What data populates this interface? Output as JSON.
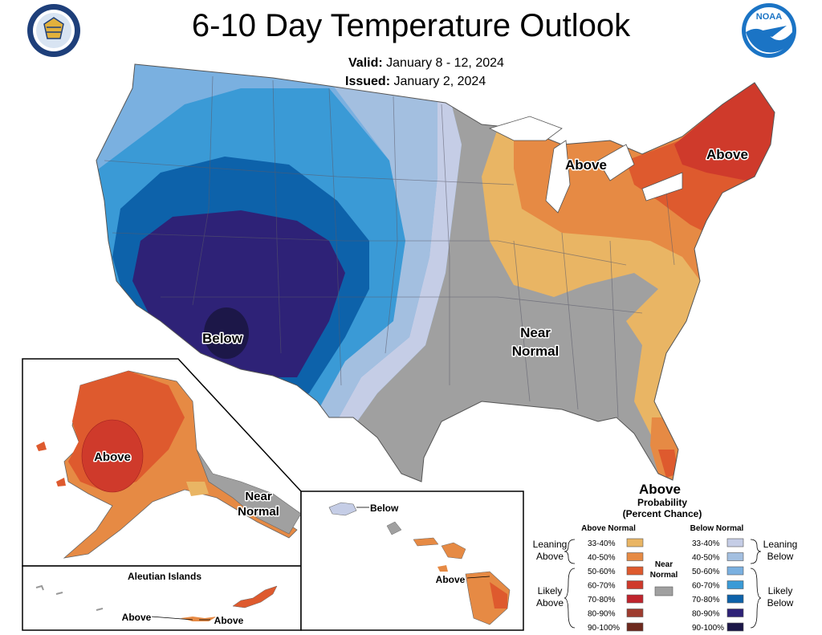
{
  "title": "6-10 Day Temperature Outlook",
  "valid_label": "Valid:",
  "valid_value": "January 8 - 12, 2024",
  "issued_label": "Issued:",
  "issued_value": "January 2, 2024",
  "logos": {
    "left": "department-of-commerce-seal",
    "right": "noaa-logo",
    "noaa_text": "NOAA"
  },
  "map_labels": {
    "conus_below": "Below",
    "great_lakes_above": "Above",
    "northeast_above": "Above",
    "near_normal_1": "Near",
    "near_normal_2": "Normal",
    "florida_above": "Above",
    "alaska_above": "Above",
    "alaska_near_1": "Near",
    "alaska_near_2": "Normal",
    "aleutian_title": "Aleutian Islands",
    "aleutian_above_1": "Above",
    "aleutian_above_2": "Above",
    "hawaii_below": "Below",
    "hawaii_above": "Above"
  },
  "legend": {
    "title1": "Probability",
    "title2": "(Percent Chance)",
    "above_header": "Above Normal",
    "below_header": "Below Normal",
    "leaning_above_1": "Leaning",
    "leaning_above_2": "Above",
    "likely_above_1": "Likely",
    "likely_above_2": "Above",
    "near_1": "Near",
    "near_2": "Normal",
    "leaning_below_1": "Leaning",
    "leaning_below_2": "Below",
    "likely_below_1": "Likely",
    "likely_below_2": "Below",
    "above_ranges": [
      "33-40%",
      "40-50%",
      "50-60%",
      "60-70%",
      "70-80%",
      "80-90%",
      "90-100%"
    ],
    "below_ranges": [
      "33-40%",
      "40-50%",
      "50-60%",
      "60-70%",
      "70-80%",
      "80-90%",
      "90-100%"
    ]
  },
  "colors": {
    "above": [
      "#e9b564",
      "#e68a44",
      "#de5a2e",
      "#cf3a2b",
      "#c0242d",
      "#9e3c2f",
      "#6e2a1f"
    ],
    "below": [
      "#c5cde6",
      "#a3bfe0",
      "#7ab0e0",
      "#3a9ad6",
      "#0d62aa",
      "#2e2277",
      "#1c1748"
    ],
    "near": "#a0a0a0"
  }
}
